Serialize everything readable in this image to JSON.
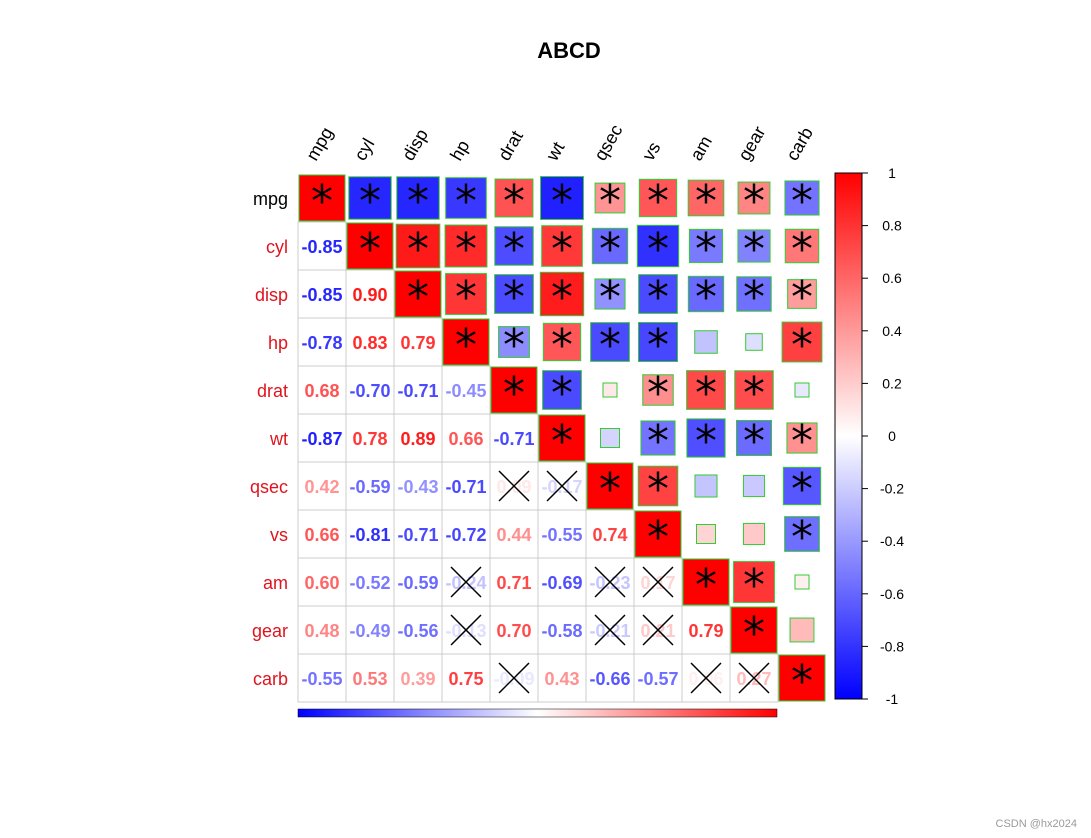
{
  "chart_data": {
    "type": "heatmap",
    "title": "ABCD",
    "variables": [
      "mpg",
      "cyl",
      "disp",
      "hp",
      "drat",
      "wt",
      "qsec",
      "vs",
      "am",
      "gear",
      "carb"
    ],
    "correlation": [
      [
        1.0,
        -0.85,
        -0.85,
        -0.78,
        0.68,
        -0.87,
        0.42,
        0.66,
        0.6,
        0.48,
        -0.55
      ],
      [
        -0.85,
        1.0,
        0.9,
        0.83,
        -0.7,
        0.78,
        -0.59,
        -0.81,
        -0.52,
        -0.49,
        0.53
      ],
      [
        -0.85,
        0.9,
        1.0,
        0.79,
        -0.71,
        0.89,
        -0.43,
        -0.71,
        -0.59,
        -0.56,
        0.39
      ],
      [
        -0.78,
        0.83,
        0.79,
        1.0,
        -0.45,
        0.66,
        -0.71,
        -0.72,
        -0.24,
        -0.13,
        0.75
      ],
      [
        0.68,
        -0.7,
        -0.71,
        -0.45,
        1.0,
        -0.71,
        0.09,
        0.44,
        0.71,
        0.7,
        -0.09
      ],
      [
        -0.87,
        0.78,
        0.89,
        0.66,
        -0.71,
        1.0,
        -0.17,
        -0.55,
        -0.69,
        -0.58,
        0.43
      ],
      [
        0.42,
        -0.59,
        -0.43,
        -0.71,
        0.09,
        -0.17,
        1.0,
        0.74,
        -0.23,
        -0.21,
        -0.66
      ],
      [
        0.66,
        -0.81,
        -0.71,
        -0.72,
        0.44,
        -0.55,
        0.74,
        1.0,
        0.17,
        0.21,
        -0.57
      ],
      [
        0.6,
        -0.52,
        -0.59,
        -0.24,
        0.71,
        -0.69,
        -0.23,
        0.17,
        1.0,
        0.79,
        0.06
      ],
      [
        0.48,
        -0.49,
        -0.56,
        -0.13,
        0.7,
        -0.58,
        -0.21,
        0.21,
        0.79,
        1.0,
        0.27
      ],
      [
        -0.55,
        0.53,
        0.39,
        0.75,
        -0.09,
        0.43,
        -0.66,
        -0.57,
        0.06,
        0.27,
        1.0
      ]
    ],
    "significant": [
      [
        1,
        1,
        1,
        1,
        1,
        1,
        1,
        1,
        1,
        1,
        1
      ],
      [
        1,
        1,
        1,
        1,
        1,
        1,
        1,
        1,
        1,
        1,
        1
      ],
      [
        1,
        1,
        1,
        1,
        1,
        1,
        1,
        1,
        1,
        1,
        1
      ],
      [
        1,
        1,
        1,
        1,
        1,
        1,
        1,
        1,
        0,
        0,
        1
      ],
      [
        1,
        1,
        1,
        1,
        1,
        1,
        0,
        1,
        1,
        1,
        0
      ],
      [
        1,
        1,
        1,
        1,
        1,
        1,
        0,
        1,
        1,
        1,
        1
      ],
      [
        1,
        1,
        1,
        1,
        0,
        0,
        1,
        1,
        0,
        0,
        1
      ],
      [
        1,
        1,
        1,
        1,
        1,
        1,
        1,
        1,
        0,
        0,
        1
      ],
      [
        1,
        1,
        1,
        0,
        1,
        1,
        0,
        0,
        1,
        1,
        0
      ],
      [
        1,
        1,
        1,
        0,
        1,
        1,
        0,
        0,
        1,
        1,
        0
      ],
      [
        1,
        1,
        1,
        1,
        0,
        1,
        1,
        1,
        0,
        0,
        1
      ]
    ],
    "upper_method": "square",
    "lower_method": "number",
    "insig_mark_upper": "*",
    "insig_mark_lower": "x",
    "colorbar_ticks": [
      "1",
      "0.8",
      "0.6",
      "0.4",
      "0.2",
      "0",
      "-0.2",
      "-0.4",
      "-0.6",
      "-0.8",
      "-1"
    ],
    "colors": {
      "low": "#0000ff",
      "mid": "#ffffff",
      "high": "#ff0000",
      "label": "#e0141e",
      "first_label": "#000000",
      "square_border": "#33cc33"
    }
  },
  "watermark": "CSDN @hx2024"
}
